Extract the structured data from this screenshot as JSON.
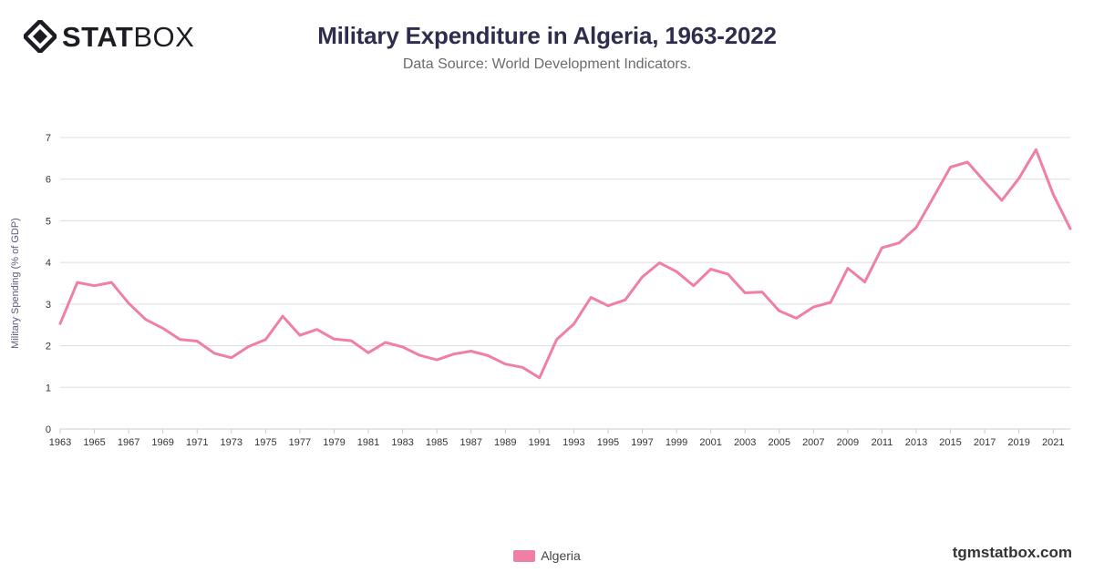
{
  "header": {
    "logo_bold": "STAT",
    "logo_thin": "BOX",
    "title": "Military Expenditure in Algeria, 1963-2022",
    "subtitle": "Data Source: World Development Indicators."
  },
  "footer": {
    "site": "tgmstatbox.com"
  },
  "colors": {
    "series": "#f07fa8",
    "grid": "#dddddd",
    "axis_text": "#333333"
  },
  "chart_data": {
    "type": "line",
    "title": "Military Expenditure in Algeria, 1963-2022",
    "subtitle": "Data Source: World Development Indicators.",
    "xlabel": "",
    "ylabel": "Military Spending (% of GDP)",
    "ylim": [
      0,
      7
    ],
    "yticks": [
      0,
      1,
      2,
      3,
      4,
      5,
      6,
      7
    ],
    "xticks": [
      1963,
      1965,
      1967,
      1969,
      1971,
      1973,
      1975,
      1977,
      1979,
      1981,
      1983,
      1985,
      1987,
      1989,
      1991,
      1993,
      1995,
      1997,
      1999,
      2001,
      2003,
      2005,
      2007,
      2009,
      2011,
      2013,
      2015,
      2017,
      2019,
      2021
    ],
    "grid": true,
    "legend_position": "bottom-center",
    "x": [
      1963,
      1964,
      1965,
      1966,
      1967,
      1968,
      1969,
      1970,
      1971,
      1972,
      1973,
      1974,
      1975,
      1976,
      1977,
      1978,
      1979,
      1980,
      1981,
      1982,
      1983,
      1984,
      1985,
      1986,
      1987,
      1988,
      1989,
      1990,
      1991,
      1992,
      1993,
      1994,
      1995,
      1996,
      1997,
      1998,
      1999,
      2000,
      2001,
      2002,
      2003,
      2004,
      2005,
      2006,
      2007,
      2008,
      2009,
      2010,
      2011,
      2012,
      2013,
      2014,
      2015,
      2016,
      2017,
      2018,
      2019,
      2020,
      2021,
      2022
    ],
    "series": [
      {
        "name": "Algeria",
        "color": "#f07fa8",
        "values": [
          2.53,
          3.52,
          3.44,
          3.52,
          3.02,
          2.63,
          2.42,
          2.15,
          2.11,
          1.82,
          1.71,
          1.98,
          2.15,
          2.71,
          2.25,
          2.39,
          2.16,
          2.12,
          1.83,
          2.08,
          1.97,
          1.77,
          1.66,
          1.8,
          1.87,
          1.76,
          1.56,
          1.48,
          1.23,
          2.15,
          2.52,
          3.16,
          2.96,
          3.1,
          3.65,
          3.99,
          3.78,
          3.44,
          3.84,
          3.72,
          3.27,
          3.29,
          2.84,
          2.66,
          2.93,
          3.04,
          3.86,
          3.53,
          4.35,
          4.47,
          4.84,
          5.56,
          6.29,
          6.41,
          5.94,
          5.49,
          6.02,
          6.71,
          5.64,
          4.81
        ]
      }
    ]
  }
}
